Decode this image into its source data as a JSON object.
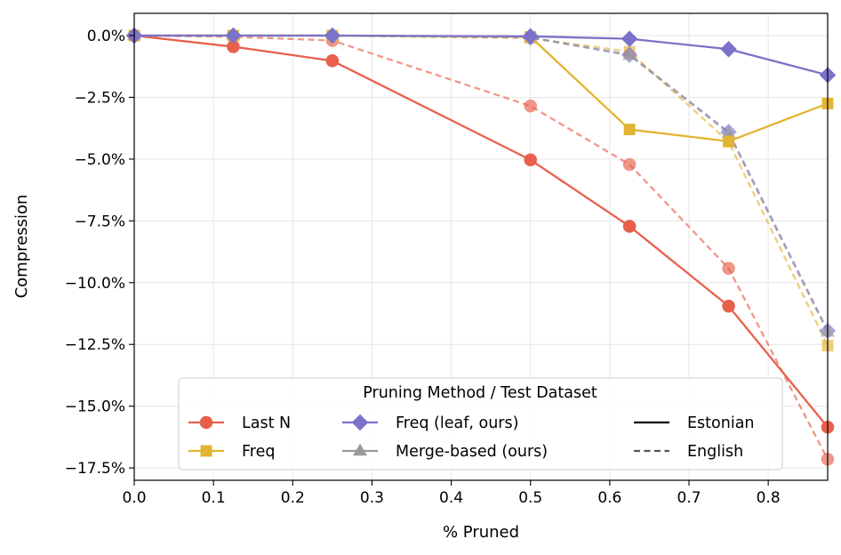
{
  "chart_data": {
    "type": "line",
    "xlabel": "% Pruned",
    "ylabel": "Compression",
    "xlim": [
      0.0,
      0.875
    ],
    "ylim": [
      -18.0,
      0.9
    ],
    "x_ticks": [
      0.0,
      0.1,
      0.2,
      0.3,
      0.4,
      0.5,
      0.6,
      0.7,
      0.8
    ],
    "x_tick_labels": [
      "0.0",
      "0.1",
      "0.2",
      "0.3",
      "0.4",
      "0.5",
      "0.6",
      "0.7",
      "0.8"
    ],
    "y_ticks": [
      0.0,
      -2.5,
      -5.0,
      -7.5,
      -10.0,
      -12.5,
      -15.0,
      -17.5
    ],
    "y_tick_labels": [
      "0.0%",
      "−2.5%",
      "−5.0%",
      "−7.5%",
      "−10.0%",
      "−12.5%",
      "−15.0%",
      "−17.5%"
    ],
    "grid": true,
    "legend": {
      "title": "Pruning Method / Test Dataset",
      "placement": "lower-center",
      "methods": [
        {
          "label": "Last N",
          "color": "#e8604c",
          "marker": "circle"
        },
        {
          "label": "Freq",
          "color": "#e3b431",
          "marker": "square"
        },
        {
          "label": "Freq (leaf, ours)",
          "color": "#7b72c9",
          "marker": "diamond"
        },
        {
          "label": "Merge-based (ours)",
          "color": "#999999",
          "marker": "triangle"
        }
      ],
      "datasets": [
        {
          "label": "Estonian",
          "style": "solid"
        },
        {
          "label": "English",
          "style": "dashed"
        }
      ]
    },
    "series": [
      {
        "method": "Last N",
        "dataset": "Estonian",
        "color": "#e8604c",
        "marker": "circle",
        "style": "solid",
        "x": [
          0.0,
          0.125,
          0.25,
          0.5,
          0.625,
          0.75,
          0.875
        ],
        "y": [
          0.0,
          -0.45,
          -1.02,
          -5.03,
          -7.72,
          -10.95,
          -15.85
        ]
      },
      {
        "method": "Last N",
        "dataset": "English",
        "color": "#e8604c",
        "marker": "circle",
        "style": "dashed",
        "x": [
          0.0,
          0.125,
          0.25,
          0.5,
          0.625,
          0.75,
          0.875
        ],
        "y": [
          0.0,
          -0.05,
          -0.2,
          -2.85,
          -5.22,
          -9.42,
          -17.15
        ]
      },
      {
        "method": "Freq",
        "dataset": "Estonian",
        "color": "#e3b431",
        "marker": "square",
        "style": "solid",
        "x": [
          0.0,
          0.125,
          0.25,
          0.5,
          0.625,
          0.75,
          0.875
        ],
        "y": [
          0.0,
          0.0,
          0.0,
          -0.05,
          -3.8,
          -4.28,
          -2.75
        ]
      },
      {
        "method": "Freq",
        "dataset": "English",
        "color": "#e3b431",
        "marker": "square",
        "style": "dashed",
        "x": [
          0.0,
          0.125,
          0.25,
          0.5,
          0.625,
          0.75,
          0.875
        ],
        "y": [
          0.0,
          0.0,
          0.0,
          -0.1,
          -0.65,
          -4.3,
          -12.55
        ]
      },
      {
        "method": "Freq (leaf, ours)",
        "dataset": "Estonian",
        "color": "#7b72c9",
        "marker": "diamond",
        "style": "solid",
        "x": [
          0.0,
          0.125,
          0.25,
          0.5,
          0.625,
          0.75,
          0.875
        ],
        "y": [
          0.0,
          0.0,
          0.0,
          -0.03,
          -0.13,
          -0.55,
          -1.6
        ]
      },
      {
        "method": "Freq (leaf, ours)",
        "dataset": "English",
        "color": "#7b72c9",
        "marker": "diamond",
        "style": "dashed",
        "x": [
          0.0,
          0.125,
          0.25,
          0.5,
          0.625,
          0.75,
          0.875
        ],
        "y": [
          0.0,
          0.0,
          0.0,
          -0.08,
          -0.78,
          -3.9,
          -11.95
        ]
      },
      {
        "method": "Merge-based (ours)",
        "dataset": "English",
        "color": "#999999",
        "marker": "triangle",
        "style": "dashed",
        "x": [
          0.0,
          0.125,
          0.25,
          0.5,
          0.625,
          0.75,
          0.875
        ],
        "y": [
          0.0,
          0.0,
          0.0,
          -0.08,
          -0.8,
          -3.95,
          -12.0
        ]
      }
    ]
  }
}
